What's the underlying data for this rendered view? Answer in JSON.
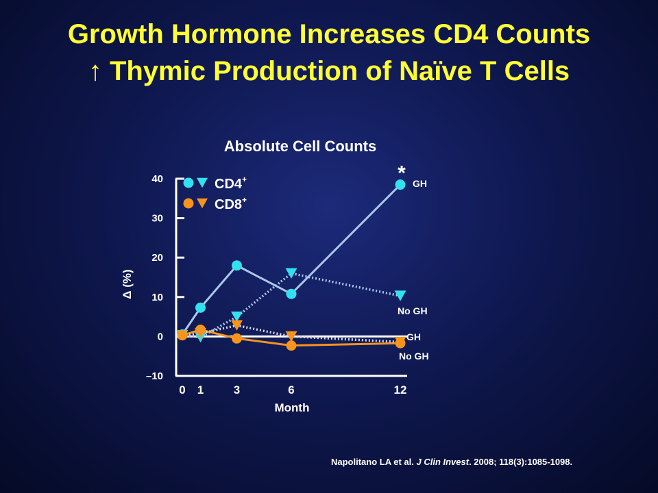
{
  "title": {
    "line1": "Growth Hormone Increases CD4 Counts",
    "line2": "↑ Thymic Production of Naïve T Cells"
  },
  "citation": {
    "authors": "Napolitano LA et al. ",
    "journal": "J Clin Invest",
    "details": ". 2008; 118(3):1085-1098."
  },
  "chart_data": {
    "type": "line",
    "title": "Absolute Cell Counts",
    "xlabel": "Month",
    "ylabel": "Δ (%)",
    "x_ticks": [
      0,
      1,
      3,
      6,
      12
    ],
    "y_ticks": [
      -10,
      0,
      10,
      20,
      30,
      40
    ],
    "y_tick_labels": [
      "–10",
      "0",
      "10",
      "20",
      "30",
      "40"
    ],
    "ylim": [
      -10,
      40
    ],
    "xlim": [
      0,
      12
    ],
    "grid": false,
    "legend": {
      "placement": "top-left",
      "entries": [
        {
          "label": "CD4",
          "superscript": "+",
          "color": "#33e0ee"
        },
        {
          "label": "CD8",
          "superscript": "+",
          "color": "#f7941d"
        }
      ]
    },
    "series": [
      {
        "cell": "CD4",
        "group": "GH",
        "marker": "circle",
        "style": "solid",
        "color": "#33e0ee",
        "line_color": "#a9c8e8",
        "end_label": "GH",
        "x": [
          0,
          1,
          3,
          6,
          12
        ],
        "y": [
          0.5,
          7.3,
          18,
          10.8,
          38.5
        ]
      },
      {
        "cell": "CD4",
        "group": "No GH",
        "marker": "triangle",
        "style": "dotted",
        "color": "#33e0ee",
        "line_color": "#a9c8e8",
        "end_label": "No GH",
        "x": [
          0,
          1,
          3,
          6,
          12
        ],
        "y": [
          0.3,
          -0.2,
          5,
          16,
          10.3
        ]
      },
      {
        "cell": "CD8",
        "group": "GH",
        "marker": "circle",
        "style": "solid",
        "color": "#f7941d",
        "line_color": "#f7941d",
        "end_label": "GH",
        "x": [
          0,
          1,
          3,
          6,
          12
        ],
        "y": [
          0.3,
          1.7,
          -0.5,
          -2.3,
          -1.7
        ]
      },
      {
        "cell": "CD8",
        "group": "No GH",
        "marker": "triangle",
        "style": "dotted",
        "color": "#f7941d",
        "line_color": "#d8d8e8",
        "end_label": "No GH",
        "x": [
          0,
          1,
          3,
          6,
          12
        ],
        "y": [
          0.3,
          0.8,
          2.8,
          0,
          -1.4
        ]
      }
    ],
    "annotations": [
      {
        "text": "*",
        "x": 12,
        "y": 38.5
      }
    ]
  }
}
